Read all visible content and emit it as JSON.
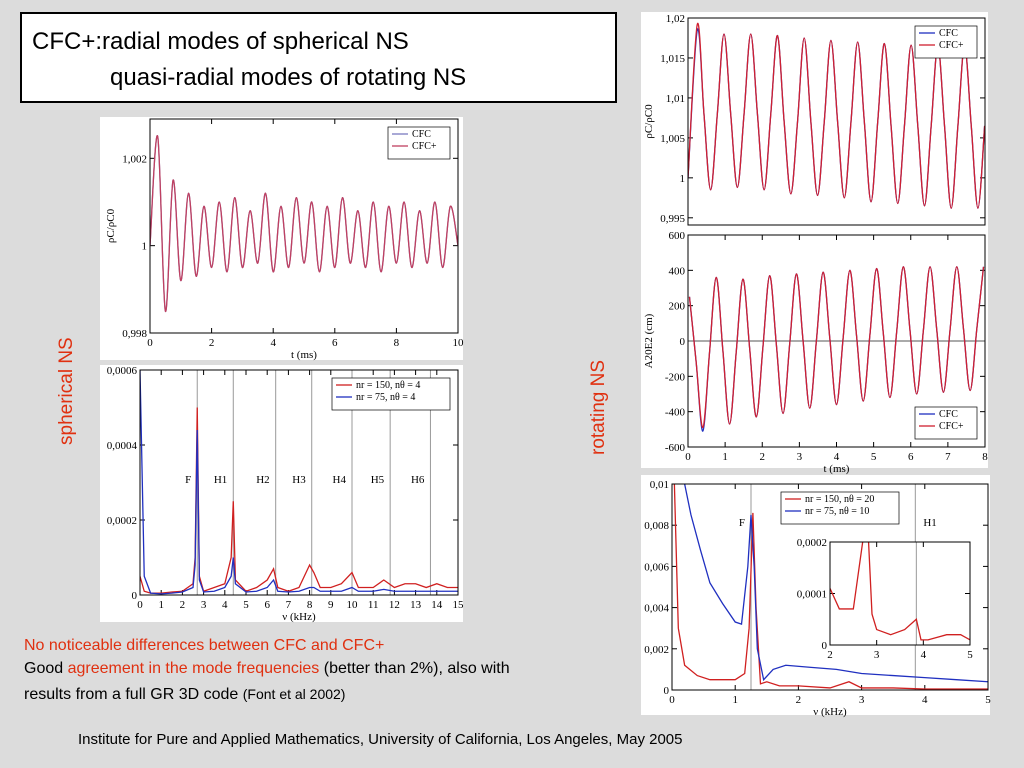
{
  "slide": {
    "title": [
      "CFC+:radial modes of spherical NS",
      "quasi-radial modes of rotating NS"
    ],
    "left_label": "spherical NS",
    "right_label": "rotating NS",
    "notes": {
      "line1": "No noticeable differences between CFC and CFC+",
      "line2": [
        "Good ",
        "agreement in the mode frequencies",
        " (better than 2%), also with"
      ],
      "line3": [
        "results from a full GR 3D code ",
        "(Font et al 2002)"
      ]
    },
    "footer": "Institute for Pure and Applied Mathematics, University of California, Los Angeles, May 2005"
  },
  "chart_data": [
    {
      "type": "line",
      "smooth": true,
      "xlabel": "t (ms)",
      "ylabel": "ρC/ρC0",
      "legend": "upper right",
      "xlim": [
        0,
        10
      ],
      "xticks": [
        0,
        2,
        4,
        6,
        8,
        10
      ],
      "ylim": [
        0.998,
        1.0029
      ],
      "yticks": [
        {
          "value": 0.998,
          "label": "0,998"
        },
        1,
        {
          "value": 1.002,
          "label": "1,002"
        }
      ],
      "x": [
        0,
        0.25,
        0.5,
        0.75,
        1,
        1.25,
        1.5,
        1.75,
        2,
        2.25,
        2.5,
        2.75,
        3,
        3.25,
        3.5,
        3.75,
        4,
        4.25,
        4.5,
        4.75,
        5,
        5.25,
        5.5,
        5.75,
        6,
        6.25,
        6.5,
        6.75,
        7,
        7.25,
        7.5,
        7.75,
        8,
        8.25,
        8.5,
        8.75,
        9,
        9.25,
        9.5,
        9.75,
        10
      ],
      "series": [
        {
          "name": "CFC",
          "color": "#7b7bc0",
          "values": [
            1,
            1.0025,
            0.9985,
            1.0015,
            0.9992,
            1.0012,
            0.9993,
            1.0009,
            0.9995,
            1.001,
            0.9994,
            1.0011,
            0.9995,
            1.0008,
            0.9996,
            1.0012,
            0.9994,
            1.0009,
            0.9995,
            1.0011,
            0.9996,
            1.001,
            0.9994,
            1.0009,
            0.9995,
            1.0011,
            0.9996,
            1.0008,
            0.9995,
            1.001,
            0.9994,
            1.0009,
            0.9996,
            1.001,
            0.9995,
            1.0008,
            0.9996,
            1.001,
            0.9995,
            1.0009,
            1
          ]
        },
        {
          "name": "CFC+",
          "color": "#c04060",
          "values": [
            1,
            1.0025,
            0.9985,
            1.0015,
            0.9992,
            1.0012,
            0.9993,
            1.0009,
            0.9995,
            1.001,
            0.9994,
            1.0011,
            0.9995,
            1.0008,
            0.9996,
            1.0012,
            0.9994,
            1.0009,
            0.9995,
            1.0011,
            0.9996,
            1.001,
            0.9994,
            1.0009,
            0.9995,
            1.0011,
            0.9996,
            1.0008,
            0.9995,
            1.001,
            0.9994,
            1.0009,
            0.9996,
            1.001,
            0.9995,
            1.0008,
            0.9996,
            1.001,
            0.9995,
            1.0009,
            1
          ]
        }
      ]
    },
    {
      "type": "line",
      "smooth": false,
      "xlabel": "ν (kHz)",
      "legend": "upper right",
      "xlim": [
        0,
        15
      ],
      "xticks": [
        0,
        1,
        2,
        3,
        4,
        5,
        6,
        7,
        8,
        9,
        10,
        11,
        12,
        13,
        14,
        15
      ],
      "ylim": [
        0,
        0.0006
      ],
      "yticks": [
        0,
        {
          "value": 0.0002,
          "label": "0,0002"
        },
        {
          "value": 0.0004,
          "label": "0,0004"
        },
        {
          "value": 0.0006,
          "label": "0,0006"
        }
      ],
      "annotations": [
        {
          "text": "F",
          "x": 2.7
        },
        {
          "text": "H1",
          "x": 4.4
        },
        {
          "text": "H2",
          "x": 6.4
        },
        {
          "text": "H3",
          "x": 8.1
        },
        {
          "text": "H4",
          "x": 10
        },
        {
          "text": "H5",
          "x": 11.8
        },
        {
          "text": "H6",
          "x": 13.7
        }
      ],
      "x": [
        0,
        0.2,
        0.5,
        1,
        1.5,
        2,
        2.5,
        2.6,
        2.7,
        2.8,
        3,
        3.5,
        4,
        4.3,
        4.4,
        4.5,
        5,
        5.5,
        6,
        6.3,
        6.5,
        7,
        7.5,
        8,
        8.2,
        8.5,
        9,
        9.5,
        10,
        10.3,
        11,
        11.5,
        12,
        12.5,
        13,
        13.5,
        14,
        14.5,
        15
      ],
      "series": [
        {
          "name": "nr = 150, nθ = 4",
          "color": "#d02020",
          "values": [
            5e-05,
            1e-05,
            5e-06,
            5e-06,
            8e-06,
            1e-05,
            3e-05,
            0.0001,
            0.0005,
            5e-05,
            1e-05,
            2e-05,
            3e-05,
            0.0001,
            0.00025,
            4e-05,
            1e-05,
            2e-05,
            4e-05,
            7e-05,
            2e-05,
            1e-05,
            2e-05,
            8e-05,
            6e-05,
            2e-05,
            2e-05,
            3e-05,
            6e-05,
            2e-05,
            2e-05,
            4e-05,
            2e-05,
            3e-05,
            3e-05,
            2e-05,
            3e-05,
            2e-05,
            2e-05
          ]
        },
        {
          "name": "nr = 75, nθ = 4",
          "color": "#2030c0",
          "values": [
            0.0006,
            5e-05,
            5e-06,
            3e-06,
            5e-06,
            8e-06,
            2e-05,
            8e-05,
            0.00044,
            4e-05,
            8e-06,
            1e-05,
            2e-05,
            5e-05,
            0.0001,
            3e-05,
            8e-06,
            1e-05,
            2e-05,
            4e-05,
            1e-05,
            8e-06,
            1e-05,
            2e-05,
            2e-05,
            1e-05,
            1e-05,
            1e-05,
            2e-05,
            1e-05,
            1e-05,
            1.5e-05,
            1e-05,
            1e-05,
            1e-05,
            1e-05,
            1e-05,
            1e-05,
            1e-05
          ]
        }
      ]
    },
    {
      "type": "line",
      "smooth": true,
      "ylabel": "ρC/ρC0",
      "legend": "upper right",
      "xlim": [
        0,
        8
      ],
      "ylim": [
        0.9941,
        1.02
      ],
      "yticks": [
        {
          "value": 0.995,
          "label": "0,995"
        },
        1,
        {
          "value": 1.005,
          "label": "1,005"
        },
        {
          "value": 1.01,
          "label": "1,01"
        },
        {
          "value": 1.015,
          "label": "1,015"
        },
        {
          "value": 1.02,
          "label": "1,02"
        }
      ],
      "x": [
        0,
        0.25,
        0.43,
        0.61,
        0.79,
        0.97,
        1.15,
        1.33,
        1.51,
        1.69,
        1.87,
        2.05,
        2.23,
        2.41,
        2.59,
        2.77,
        2.95,
        3.13,
        3.31,
        3.49,
        3.67,
        3.85,
        4.03,
        4.21,
        4.39,
        4.57,
        4.75,
        4.93,
        5.11,
        5.29,
        5.47,
        5.65,
        5.83,
        6.01,
        6.19,
        6.37,
        6.55,
        6.73,
        6.91,
        7.09,
        7.27,
        7.45,
        7.63,
        7.81,
        7.99
      ],
      "series": [
        {
          "name": "CFC",
          "color": "#2030c0",
          "values": [
            1,
            1.0185,
            1.008,
            0.9985,
            1.008,
            1.018,
            1.008,
            0.9988,
            1.008,
            1.018,
            1.008,
            0.9985,
            1.008,
            1.0178,
            1.007,
            0.998,
            1.007,
            1.0175,
            1.007,
            0.9978,
            1.007,
            1.0172,
            1.007,
            0.9975,
            1.007,
            1.017,
            1.007,
            0.997,
            1.007,
            1.0168,
            1.0065,
            0.9968,
            1.0065,
            1.0166,
            1.0065,
            0.9965,
            1.0065,
            1.0165,
            1.0065,
            0.9962,
            1.0065,
            1.0165,
            1.0065,
            0.9962,
            1.0065
          ]
        },
        {
          "name": "CFC+",
          "color": "#d02030",
          "values": [
            1,
            1.0192,
            1.008,
            0.9985,
            1.008,
            1.018,
            1.008,
            0.9988,
            1.008,
            1.018,
            1.008,
            0.9985,
            1.008,
            1.0178,
            1.007,
            0.998,
            1.007,
            1.0175,
            1.007,
            0.9978,
            1.007,
            1.0172,
            1.007,
            0.9975,
            1.007,
            1.017,
            1.007,
            0.997,
            1.007,
            1.0168,
            1.0065,
            0.9968,
            1.0065,
            1.0166,
            1.0065,
            0.9965,
            1.0065,
            1.0165,
            1.0065,
            0.9962,
            1.0065,
            1.0165,
            1.0065,
            0.9962,
            1.0065
          ]
        }
      ]
    },
    {
      "type": "line",
      "smooth": true,
      "xlabel": "t (ms)",
      "ylabel": "A20E2 (cm)",
      "legend": "lower right",
      "xlim": [
        0,
        8
      ],
      "xticks": [
        0,
        1,
        2,
        3,
        4,
        5,
        6,
        7,
        8
      ],
      "ylim": [
        -600,
        600
      ],
      "yticks": [
        -600,
        -400,
        -200,
        0,
        200,
        400,
        600
      ],
      "hlines": [
        0
      ],
      "x": [
        0.04,
        0.22,
        0.4,
        0.58,
        0.76,
        0.94,
        1.12,
        1.3,
        1.48,
        1.66,
        1.84,
        2.02,
        2.2,
        2.38,
        2.56,
        2.74,
        2.92,
        3.1,
        3.28,
        3.46,
        3.64,
        3.82,
        4,
        4.18,
        4.36,
        4.54,
        4.72,
        4.9,
        5.08,
        5.26,
        5.44,
        5.62,
        5.8,
        5.98,
        6.16,
        6.34,
        6.52,
        6.7,
        6.88,
        7.06,
        7.24,
        7.42,
        7.6,
        7.78,
        7.96
      ],
      "series": [
        {
          "name": "CFC",
          "color": "#2030c0",
          "values": [
            250,
            -120,
            -510,
            -65,
            360,
            -55,
            -470,
            -60,
            350,
            -40,
            -430,
            -30,
            370,
            -20,
            -410,
            -15,
            380,
            0,
            -380,
            5,
            390,
            15,
            -360,
            20,
            400,
            30,
            -340,
            35,
            410,
            45,
            -320,
            50,
            420,
            60,
            -300,
            60,
            420,
            65,
            -290,
            65,
            420,
            70,
            -280,
            70,
            420
          ]
        },
        {
          "name": "CFC+",
          "color": "#d02030",
          "values": [
            250,
            -120,
            -490,
            -65,
            360,
            -55,
            -470,
            -60,
            350,
            -40,
            -430,
            -30,
            370,
            -20,
            -410,
            -15,
            380,
            0,
            -380,
            5,
            390,
            15,
            -360,
            20,
            400,
            30,
            -340,
            35,
            410,
            45,
            -320,
            50,
            420,
            60,
            -300,
            60,
            420,
            65,
            -290,
            65,
            420,
            70,
            -280,
            70,
            420
          ]
        }
      ]
    },
    {
      "type": "line",
      "smooth": false,
      "xlabel": "ν (kHz)",
      "legend": "upper center",
      "xlim": [
        0,
        5
      ],
      "xticks": [
        0,
        1,
        2,
        3,
        4,
        5
      ],
      "ylim": [
        0,
        0.01
      ],
      "yticks": [
        0,
        {
          "value": 0.002,
          "label": "0,002"
        },
        {
          "value": 0.004,
          "label": "0,004"
        },
        {
          "value": 0.006,
          "label": "0,006"
        },
        {
          "value": 0.008,
          "label": "0,008"
        },
        {
          "value": 0.01,
          "label": "0,01"
        }
      ],
      "annotations": [
        {
          "text": "F",
          "x": 1.25
        },
        {
          "text": "H1",
          "x": 3.85
        }
      ],
      "series": [
        {
          "name": "nr = 150, nθ = 20",
          "color": "#d02020",
          "x": [
            0.02,
            0.1,
            0.2,
            0.4,
            0.6,
            0.8,
            1,
            1.15,
            1.22,
            1.28,
            1.33,
            1.4,
            1.5,
            1.7,
            2,
            2.5,
            2.8,
            3,
            3.5,
            4,
            4.5,
            5
          ],
          "values": [
            0.012,
            0.003,
            0.0012,
            0.0007,
            0.0005,
            0.0005,
            0.0005,
            0.0008,
            0.003,
            0.0086,
            0.004,
            0.0003,
            0.0004,
            0.0002,
            0.0002,
            0.0001,
            0.0004,
            0.0001,
            0.0001,
            5e-05,
            5e-05,
            5e-05
          ]
        },
        {
          "name": "nr = 75, nθ = 10",
          "color": "#2030c0",
          "x": [
            0.05,
            0.2,
            0.3,
            0.45,
            0.6,
            0.8,
            1,
            1.1,
            1.2,
            1.25,
            1.3,
            1.35,
            1.45,
            1.6,
            1.8,
            2.2,
            2.6,
            3,
            3.5,
            4,
            4.5,
            5
          ],
          "values": [
            0.012,
            0.01,
            0.0085,
            0.0068,
            0.0052,
            0.0042,
            0.0033,
            0.0032,
            0.006,
            0.0085,
            0.006,
            0.002,
            0.0005,
            0.001,
            0.0012,
            0.0011,
            0.001,
            0.0008,
            0.0007,
            0.0006,
            0.0005,
            0.0004
          ]
        }
      ]
    },
    {
      "type": "line",
      "smooth": false,
      "xlim": [
        2,
        5
      ],
      "xticks": [
        2,
        3,
        4,
        5
      ],
      "ylim": [
        0,
        0.0002
      ],
      "yticks": [
        0,
        {
          "value": 0.0001,
          "label": "0,0001"
        },
        {
          "value": 0.0002,
          "label": "0,0002"
        }
      ],
      "vlines": [
        3.85
      ],
      "series": [
        {
          "color": "#d02020",
          "x": [
            2,
            2.2,
            2.5,
            2.7,
            2.8,
            2.9,
            3,
            3.3,
            3.6,
            3.85,
            3.95,
            4.1,
            4.5,
            4.8,
            5
          ],
          "values": [
            0.00011,
            7e-05,
            7e-05,
            0.0002,
            0.00025,
            6e-05,
            3e-05,
            2e-05,
            3e-05,
            5e-05,
            1e-05,
            1e-05,
            2e-05,
            2e-05,
            1e-05
          ]
        }
      ]
    }
  ]
}
